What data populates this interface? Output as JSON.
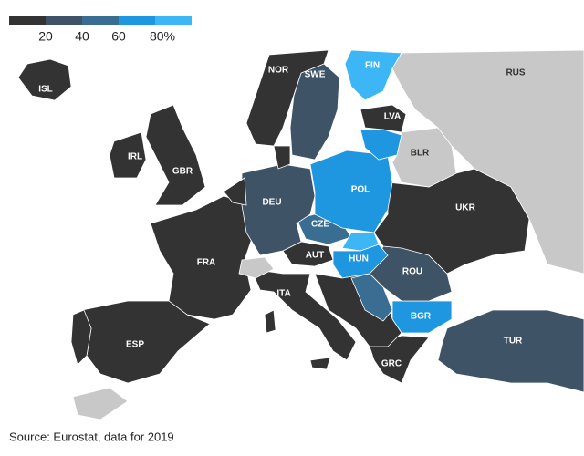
{
  "legend": {
    "colors": [
      "#333333",
      "#3f5366",
      "#3a6d92",
      "#1f97e0",
      "#3cb6f4"
    ],
    "range": [
      0,
      100
    ],
    "ticks": [
      20,
      40,
      60,
      {
        "value": 80,
        "label": "80%"
      }
    ]
  },
  "countries": [
    {
      "label": "ISL",
      "color": "#333333"
    },
    {
      "label": "NOR",
      "color": "#333333"
    },
    {
      "label": "SWE",
      "color": "#3f5366"
    },
    {
      "label": "FIN",
      "color": "#3cb6f4"
    },
    {
      "label": "RUS",
      "color": "#c8c8c8"
    },
    {
      "label": "LVA",
      "color": "#333333"
    },
    {
      "label": "BLR",
      "color": "#c8c8c8"
    },
    {
      "label": "IRL",
      "color": "#333333"
    },
    {
      "label": "GBR",
      "color": "#333333"
    },
    {
      "label": "DEU",
      "color": "#3f5366"
    },
    {
      "label": "POL",
      "color": "#1f97e0"
    },
    {
      "label": "UKR",
      "color": "#333333"
    },
    {
      "label": "CZE",
      "color": "#3a6d92"
    },
    {
      "label": "AUT",
      "color": "#333333"
    },
    {
      "label": "FRA",
      "color": "#333333"
    },
    {
      "label": "HUN",
      "color": "#1f97e0"
    },
    {
      "label": "ROU",
      "color": "#3f5366"
    },
    {
      "label": "ITA",
      "color": "#333333"
    },
    {
      "label": "BGR",
      "color": "#1f97e0"
    },
    {
      "label": "ESP",
      "color": "#333333"
    },
    {
      "label": "TUR",
      "color": "#3f5366"
    },
    {
      "label": "GRC",
      "color": "#333333"
    }
  ],
  "source": "Source: Eurostat, data for 2019"
}
